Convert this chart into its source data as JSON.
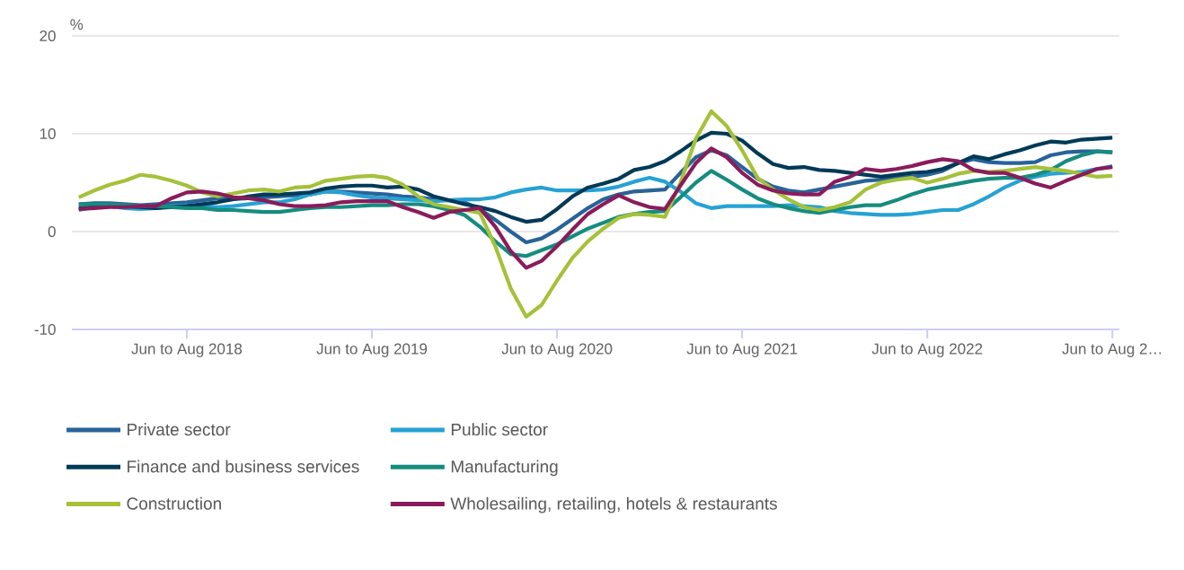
{
  "chart_data": {
    "type": "line",
    "ylabel": "%",
    "ylim": [
      -10,
      20
    ],
    "yticks": [
      -10,
      0,
      10,
      20
    ],
    "grid": "y",
    "legend": "bottom",
    "marker": "none",
    "line_style": "solid",
    "categories": [
      null,
      null,
      null,
      null,
      null,
      null,
      null,
      "Jun to Aug 2018",
      null,
      null,
      null,
      null,
      null,
      null,
      null,
      null,
      null,
      null,
      null,
      "Jun to Aug 2019",
      null,
      null,
      null,
      null,
      null,
      null,
      null,
      null,
      null,
      null,
      null,
      "Jun to Aug 2020",
      null,
      null,
      null,
      null,
      null,
      null,
      null,
      null,
      null,
      null,
      null,
      "Jun to Aug 2021",
      null,
      null,
      null,
      null,
      null,
      null,
      null,
      null,
      null,
      null,
      null,
      "Jun to Aug 2022",
      null,
      null,
      null,
      null,
      null,
      null,
      null,
      null,
      null,
      null,
      null,
      "Jun to Aug 2…"
    ],
    "series": [
      {
        "name": "Private sector",
        "color": "#286399",
        "values": [
          2.8,
          2.9,
          2.9,
          2.8,
          2.7,
          2.8,
          2.9,
          3.0,
          3.2,
          3.4,
          3.3,
          3.4,
          3.5,
          3.6,
          3.7,
          3.8,
          4.1,
          4.1,
          4.0,
          3.9,
          3.8,
          3.6,
          3.5,
          3.3,
          3.2,
          3.0,
          2.3,
          1.2,
          0,
          -1.1,
          -0.7,
          0.2,
          1.3,
          2.4,
          3.3,
          3.8,
          4.1,
          4.2,
          4.3,
          6.0,
          7.6,
          8.3,
          7.8,
          6.6,
          5.4,
          4.6,
          4.2,
          4.0,
          4.3,
          4.6,
          4.9,
          5.2,
          5.3,
          5.5,
          5.6,
          5.8,
          6.2,
          7.0,
          7.4,
          7.1,
          7.0,
          7.0,
          7.1,
          7.8,
          8.1,
          8.2,
          8.2,
          8.1
        ]
      },
      {
        "name": "Public sector",
        "color": "#27a2d4",
        "values": [
          2.2,
          2.5,
          2.6,
          2.4,
          2.3,
          2.4,
          2.6,
          2.7,
          2.6,
          2.5,
          2.6,
          2.8,
          3.0,
          3.0,
          3.3,
          3.8,
          4.1,
          4.0,
          3.7,
          3.5,
          3.4,
          3.3,
          3.2,
          3.1,
          3.2,
          3.3,
          3.3,
          3.5,
          4.0,
          4.3,
          4.5,
          4.2,
          4.2,
          4.2,
          4.3,
          4.6,
          5.1,
          5.5,
          5.1,
          4.1,
          2.9,
          2.4,
          2.6,
          2.6,
          2.6,
          2.6,
          2.7,
          2.6,
          2.5,
          2.1,
          1.9,
          1.8,
          1.7,
          1.7,
          1.8,
          2.0,
          2.2,
          2.2,
          2.8,
          3.6,
          4.5,
          5.2,
          5.6,
          5.9,
          6.0,
          6.1,
          6.4,
          6.7
        ]
      },
      {
        "name": "Finance and business services",
        "color": "#003a57",
        "values": [
          2.4,
          2.5,
          2.6,
          2.6,
          2.5,
          2.4,
          2.5,
          2.6,
          2.8,
          3.0,
          3.3,
          3.6,
          3.8,
          3.8,
          3.9,
          4.0,
          4.4,
          4.6,
          4.7,
          4.7,
          4.5,
          4.6,
          4.3,
          3.6,
          3.2,
          2.8,
          2.5,
          2.1,
          1.5,
          1.0,
          1.2,
          2.3,
          3.6,
          4.5,
          4.9,
          5.4,
          6.3,
          6.6,
          7.2,
          8.2,
          9.3,
          10.1,
          10.0,
          9.3,
          8.0,
          6.9,
          6.5,
          6.6,
          6.3,
          6.2,
          6.0,
          5.8,
          5.6,
          5.8,
          6.0,
          6.1,
          6.4,
          7.0,
          7.7,
          7.4,
          7.9,
          8.3,
          8.8,
          9.2,
          9.1,
          9.4,
          9.5,
          9.6
        ]
      },
      {
        "name": "Manufacturing",
        "color": "#158c7f",
        "values": [
          2.8,
          2.8,
          2.8,
          2.7,
          2.6,
          2.6,
          2.5,
          2.4,
          2.4,
          2.2,
          2.2,
          2.1,
          2.0,
          2.0,
          2.2,
          2.4,
          2.5,
          2.5,
          2.6,
          2.7,
          2.7,
          2.8,
          2.8,
          2.6,
          2.2,
          1.7,
          0.5,
          -1.0,
          -2.3,
          -2.5,
          -1.9,
          -1.3,
          -0.5,
          0.3,
          0.9,
          1.5,
          1.8,
          2.0,
          2.1,
          3.5,
          5.0,
          6.2,
          5.3,
          4.3,
          3.4,
          2.8,
          2.4,
          2.1,
          1.9,
          2.2,
          2.5,
          2.7,
          2.7,
          3.2,
          3.8,
          4.3,
          4.6,
          4.9,
          5.2,
          5.4,
          5.5,
          5.5,
          5.8,
          6.3,
          7.2,
          7.8,
          8.2,
          8.1
        ]
      },
      {
        "name": "Construction",
        "color": "#a5c13a",
        "values": [
          3.5,
          4.2,
          4.8,
          5.2,
          5.8,
          5.6,
          5.2,
          4.7,
          4.0,
          3.6,
          3.9,
          4.2,
          4.3,
          4.1,
          4.5,
          4.6,
          5.2,
          5.4,
          5.6,
          5.7,
          5.5,
          4.8,
          3.6,
          2.8,
          2.5,
          2.2,
          1.9,
          -1.5,
          -5.8,
          -8.7,
          -7.5,
          -5.0,
          -2.7,
          -1.0,
          0.3,
          1.4,
          1.8,
          1.7,
          1.5,
          5.0,
          9.5,
          12.3,
          10.8,
          8.3,
          5.5,
          4.3,
          3.3,
          2.5,
          2.2,
          2.5,
          3.0,
          4.3,
          5.0,
          5.3,
          5.5,
          5.0,
          5.4,
          5.9,
          6.2,
          6.1,
          6.2,
          6.4,
          6.6,
          6.4,
          6.2,
          5.9,
          5.6,
          5.7
        ]
      },
      {
        "name": "Wholesailing, retailing, hotels & restaurants",
        "color": "#891c5b",
        "values": [
          2.3,
          2.4,
          2.5,
          2.5,
          2.6,
          2.6,
          3.4,
          4.0,
          4.1,
          3.9,
          3.5,
          3.4,
          3.2,
          2.8,
          2.6,
          2.6,
          2.7,
          3.0,
          3.1,
          3.1,
          3.1,
          2.5,
          2.0,
          1.4,
          2.0,
          2.2,
          2.4,
          0.5,
          -2.0,
          -3.7,
          -3.0,
          -1.5,
          0.2,
          1.8,
          2.8,
          3.7,
          3.0,
          2.5,
          2.3,
          4.7,
          7.0,
          8.5,
          7.6,
          6.0,
          4.8,
          4.2,
          3.9,
          3.8,
          3.8,
          5.1,
          5.6,
          6.4,
          6.2,
          6.4,
          6.7,
          7.1,
          7.4,
          7.2,
          6.3,
          6.0,
          6.0,
          5.5,
          4.9,
          4.5,
          5.2,
          5.8,
          6.4,
          6.6
        ]
      }
    ]
  }
}
